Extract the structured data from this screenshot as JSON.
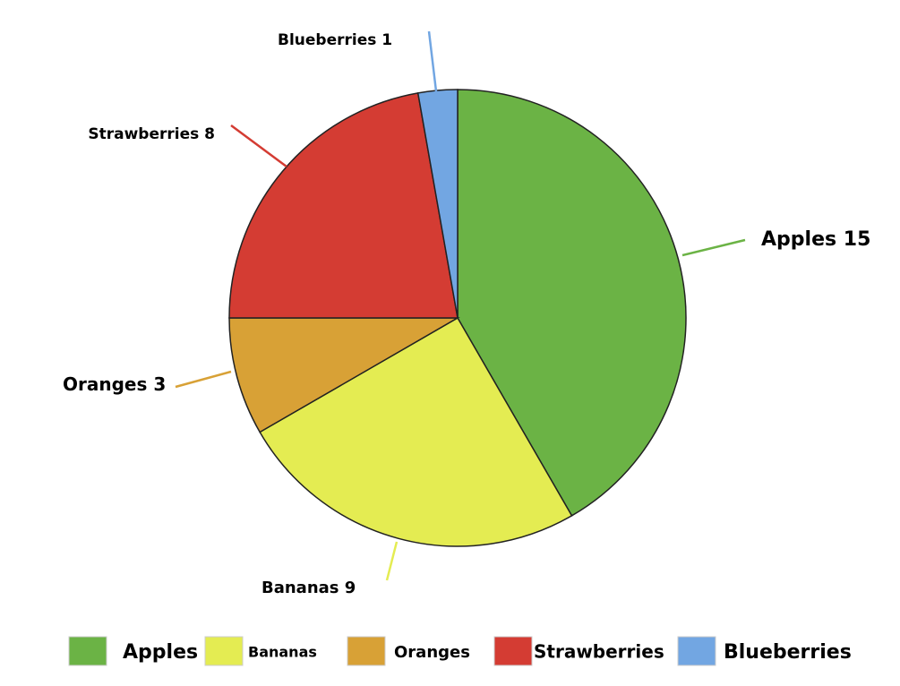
{
  "chart_data": {
    "type": "pie",
    "categories": [
      "Apples",
      "Bananas",
      "Oranges",
      "Strawberries",
      "Blueberries"
    ],
    "values": [
      15,
      9,
      3,
      8,
      1
    ],
    "colors": [
      "#6bb345",
      "#e4ec52",
      "#d8a136",
      "#d43c33",
      "#72a6e2"
    ],
    "legend": "bottom"
  }
}
